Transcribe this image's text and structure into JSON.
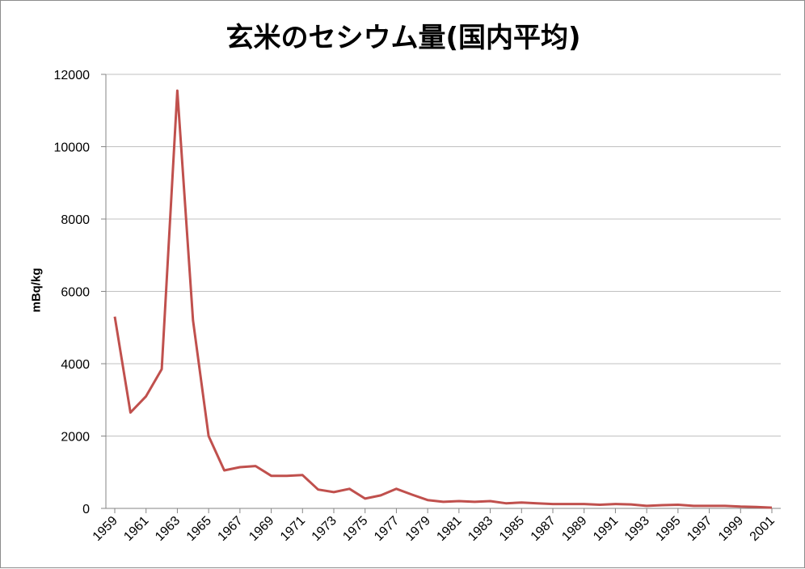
{
  "chart_data": {
    "type": "line",
    "title": "玄米のセシウム量(国内平均)",
    "xlabel": "",
    "ylabel": "mBq/kg",
    "ylim": [
      0,
      12000
    ],
    "yticks": [
      0,
      2000,
      4000,
      6000,
      8000,
      10000,
      12000
    ],
    "ytick_labels": [
      "0",
      "2000",
      "4000",
      "6000",
      "8000",
      "10000",
      "12000"
    ],
    "xtick_labels": [
      "1959",
      "1961",
      "1963",
      "1965",
      "1967",
      "1969",
      "1971",
      "1973",
      "1975",
      "1977",
      "1979",
      "1981",
      "1983",
      "1985",
      "1987",
      "1989",
      "1991",
      "1993",
      "1995",
      "1997",
      "1999",
      "2001"
    ],
    "grid": true,
    "legend": "none",
    "line_color": "#c0504d",
    "x": [
      1959,
      1960,
      1961,
      1962,
      1963,
      1964,
      1965,
      1966,
      1967,
      1968,
      1969,
      1970,
      1971,
      1972,
      1973,
      1974,
      1975,
      1976,
      1977,
      1978,
      1979,
      1980,
      1981,
      1982,
      1983,
      1984,
      1985,
      1986,
      1987,
      1988,
      1989,
      1990,
      1991,
      1992,
      1993,
      1994,
      1995,
      1996,
      1997,
      1998,
      1999,
      2000,
      2001
    ],
    "series": [
      {
        "values": [
          5300,
          2650,
          3100,
          3850,
          11550,
          5200,
          2000,
          1050,
          1140,
          1170,
          900,
          900,
          920,
          520,
          450,
          540,
          270,
          360,
          540,
          380,
          230,
          180,
          200,
          180,
          200,
          140,
          160,
          140,
          120,
          120,
          120,
          100,
          120,
          110,
          70,
          90,
          100,
          70,
          70,
          70,
          50,
          40,
          20
        ]
      }
    ]
  }
}
